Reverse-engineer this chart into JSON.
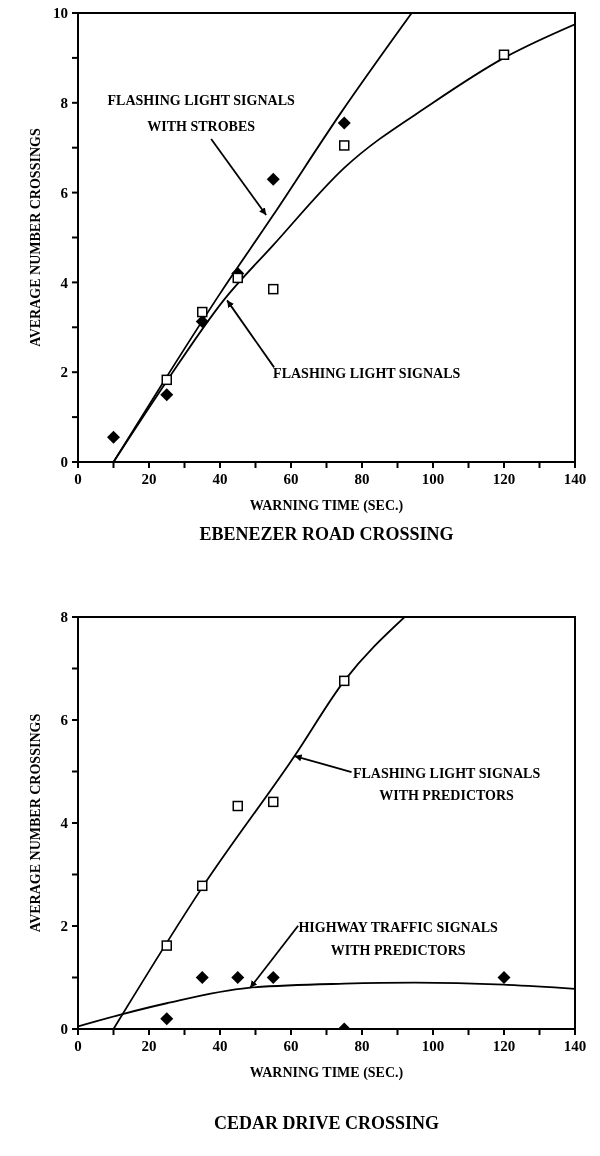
{
  "chart_data": [
    {
      "type": "line",
      "title": "EBENEZER ROAD CROSSING",
      "xlabel": "WARNING TIME (SEC.)",
      "ylabel": "AVERAGE NUMBER CROSSINGS",
      "xlim": [
        0,
        140
      ],
      "xticks": [
        0,
        {
          "value": 10,
          "label": null
        },
        20,
        {
          "value": 30,
          "label": null
        },
        40,
        {
          "value": 50,
          "label": null
        },
        60,
        {
          "value": 70,
          "label": null
        },
        80,
        {
          "value": 90,
          "label": null
        },
        100,
        {
          "value": 110,
          "label": null
        },
        120,
        {
          "value": 130,
          "label": null
        },
        140
      ],
      "ylim": [
        0,
        10
      ],
      "yticks": [
        0,
        {
          "value": 1,
          "label": null
        },
        2,
        {
          "value": 3,
          "label": null
        },
        4,
        {
          "value": 5,
          "label": null
        },
        6,
        {
          "value": 7,
          "label": null
        },
        8,
        {
          "value": 9,
          "label": null
        },
        10
      ],
      "grid": false,
      "line_style": "solid",
      "series": [
        {
          "type": "line",
          "color": "#000000",
          "marker": "none",
          "x": [
            10,
            25,
            40,
            55,
            74,
            94
          ],
          "values": [
            0,
            1.9,
            3.75,
            5.5,
            7.77,
            10
          ]
        },
        {
          "type": "line",
          "color": "#000000",
          "marker": "none",
          "x": [
            10,
            25,
            41,
            55,
            75,
            100,
            120,
            140
          ],
          "values": [
            0,
            1.8,
            3.6,
            4.83,
            6.55,
            8.0,
            9.0,
            9.75
          ]
        },
        {
          "type": "scatter",
          "color": "#000000",
          "marker": "diamond",
          "x": [
            10,
            25,
            35,
            45,
            55,
            75
          ],
          "values": [
            0.55,
            1.5,
            3.13,
            4.2,
            6.3,
            7.55
          ]
        },
        {
          "type": "scatter",
          "color": "#000000",
          "marker": "square",
          "x": [
            25,
            35,
            45,
            55,
            75,
            120
          ],
          "values": [
            1.83,
            3.34,
            4.1,
            3.85,
            7.05,
            9.07
          ]
        }
      ],
      "annotations": [
        {
          "text": "FLASHING LIGHT SIGNALS WITH STROBES",
          "x": 53,
          "y": 5.5
        },
        {
          "text": "FLASHING LIGHT SIGNALS",
          "x": 42,
          "y": 3.6
        }
      ]
    },
    {
      "type": "line",
      "title": "CEDAR DRIVE CROSSING",
      "xlabel": "WARNING TIME (SEC.)",
      "ylabel": "AVERAGE NUMBER CROSSINGS",
      "xlim": [
        0,
        140
      ],
      "xticks": [
        0,
        {
          "value": 10,
          "label": null
        },
        20,
        {
          "value": 30,
          "label": null
        },
        40,
        {
          "value": 50,
          "label": null
        },
        60,
        {
          "value": 70,
          "label": null
        },
        80,
        {
          "value": 90,
          "label": null
        },
        100,
        {
          "value": 110,
          "label": null
        },
        120,
        {
          "value": 130,
          "label": null
        },
        140
      ],
      "ylim": [
        0,
        8
      ],
      "yticks": [
        0,
        {
          "value": 1,
          "label": null
        },
        2,
        {
          "value": 3,
          "label": null
        },
        4,
        {
          "value": 5,
          "label": null
        },
        6,
        {
          "value": 7,
          "label": null
        },
        8
      ],
      "grid": false,
      "line_style": "solid",
      "series": [
        {
          "type": "line",
          "color": "#000000",
          "marker": "none",
          "x": [
            10,
            35,
            61,
            75,
            92
          ],
          "values": [
            0,
            2.75,
            5.3,
            6.76,
            8
          ]
        },
        {
          "type": "line",
          "color": "#000000",
          "marker": "none",
          "x": [
            0,
            12,
            25,
            48,
            75,
            95,
            120,
            140
          ],
          "values": [
            0.05,
            0.28,
            0.5,
            0.8,
            0.88,
            0.9,
            0.86,
            0.78
          ]
        },
        {
          "type": "scatter",
          "color": "#000000",
          "marker": "diamond",
          "x": [
            25,
            35,
            45,
            55,
            75,
            120
          ],
          "values": [
            0.2,
            1,
            1,
            1,
            0,
            1
          ]
        },
        {
          "type": "scatter",
          "color": "#000000",
          "marker": "square",
          "x": [
            25,
            35,
            45,
            55,
            75
          ],
          "values": [
            1.62,
            2.78,
            4.33,
            4.41,
            6.76
          ]
        }
      ],
      "annotations": [
        {
          "text": "FLASHING LIGHT SIGNALS WITH PREDICTORS",
          "x": 61,
          "y": 5.3
        },
        {
          "text": "HIGHWAY TRAFFIC SIGNALS WITH PREDICTORS",
          "x": 48.5,
          "y": 0.8
        }
      ]
    }
  ]
}
